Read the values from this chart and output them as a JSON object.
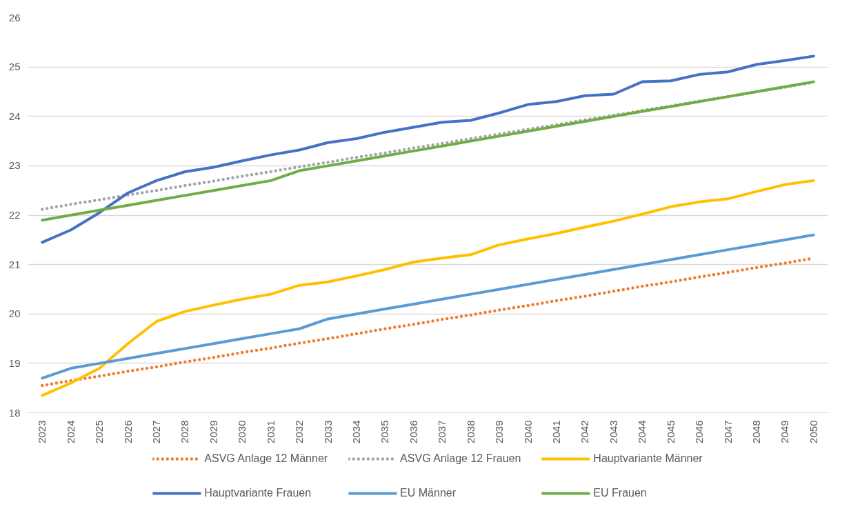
{
  "chart_data": {
    "type": "line",
    "categories": [
      "2023",
      "2024",
      "2025",
      "2026",
      "2027",
      "2028",
      "2029",
      "2030",
      "2031",
      "2032",
      "2033",
      "2034",
      "2035",
      "2036",
      "2037",
      "2038",
      "2039",
      "2040",
      "2041",
      "2042",
      "2043",
      "2044",
      "2045",
      "2046",
      "2047",
      "2048",
      "2049",
      "2050"
    ],
    "ylim": [
      18,
      26
    ],
    "yticks": [
      18,
      19,
      20,
      21,
      22,
      23,
      24,
      25,
      26
    ],
    "grid": "y",
    "legend": "bottom",
    "series": [
      {
        "name": "ASVG Anlage 12 Männer",
        "color": "#ed7d31",
        "line_style": "dotted",
        "values": [
          18.55,
          18.65,
          18.74,
          18.84,
          18.93,
          19.03,
          19.12,
          19.22,
          19.31,
          19.41,
          19.5,
          19.6,
          19.7,
          19.79,
          19.89,
          19.98,
          20.08,
          20.17,
          20.27,
          20.36,
          20.46,
          20.56,
          20.65,
          20.75,
          20.84,
          20.94,
          21.03,
          21.13
        ]
      },
      {
        "name": "ASVG Anlage 12 Frauen",
        "color": "#a5a5a5",
        "line_style": "dotted",
        "values": [
          22.12,
          22.22,
          22.31,
          22.41,
          22.5,
          22.6,
          22.69,
          22.79,
          22.88,
          22.98,
          23.07,
          23.17,
          23.26,
          23.36,
          23.45,
          23.55,
          23.64,
          23.74,
          23.83,
          23.93,
          24.02,
          24.12,
          24.21,
          24.31,
          24.4,
          24.5,
          24.59,
          24.69
        ]
      },
      {
        "name": "Hauptvariante Männer",
        "color": "#ffc000",
        "line_style": "solid",
        "values": [
          18.35,
          18.6,
          18.9,
          19.4,
          19.85,
          20.05,
          20.18,
          20.3,
          20.4,
          20.58,
          20.65,
          20.77,
          20.9,
          21.05,
          21.13,
          21.2,
          21.4,
          21.52,
          21.63,
          21.76,
          21.88,
          22.02,
          22.17,
          22.27,
          22.33,
          22.48,
          22.62,
          22.7
        ]
      },
      {
        "name": "Hauptvariante Frauen",
        "color": "#4472c4",
        "line_style": "solid",
        "values": [
          21.45,
          21.7,
          22.05,
          22.45,
          22.7,
          22.88,
          22.97,
          23.1,
          23.22,
          23.32,
          23.47,
          23.55,
          23.68,
          23.78,
          23.88,
          23.92,
          24.07,
          24.24,
          24.3,
          24.42,
          24.45,
          24.7,
          24.72,
          24.85,
          24.9,
          25.05,
          25.13,
          25.22
        ]
      },
      {
        "name": "EU Männer",
        "color": "#5b9bd5",
        "line_style": "solid",
        "values": [
          18.7,
          18.9,
          19.0,
          19.1,
          19.2,
          19.3,
          19.4,
          19.5,
          19.6,
          19.7,
          19.9,
          20.0,
          20.1,
          20.2,
          20.3,
          20.4,
          20.5,
          20.6,
          20.7,
          20.8,
          20.9,
          21.0,
          21.1,
          21.2,
          21.3,
          21.4,
          21.5,
          21.6
        ]
      },
      {
        "name": "EU Frauen",
        "color": "#70ad47",
        "line_style": "solid",
        "values": [
          21.9,
          22.0,
          22.1,
          22.2,
          22.3,
          22.4,
          22.5,
          22.6,
          22.7,
          22.9,
          23.0,
          23.1,
          23.2,
          23.3,
          23.4,
          23.5,
          23.6,
          23.7,
          23.8,
          23.9,
          24.0,
          24.1,
          24.2,
          24.3,
          24.4,
          24.5,
          24.6,
          24.7
        ]
      }
    ]
  }
}
